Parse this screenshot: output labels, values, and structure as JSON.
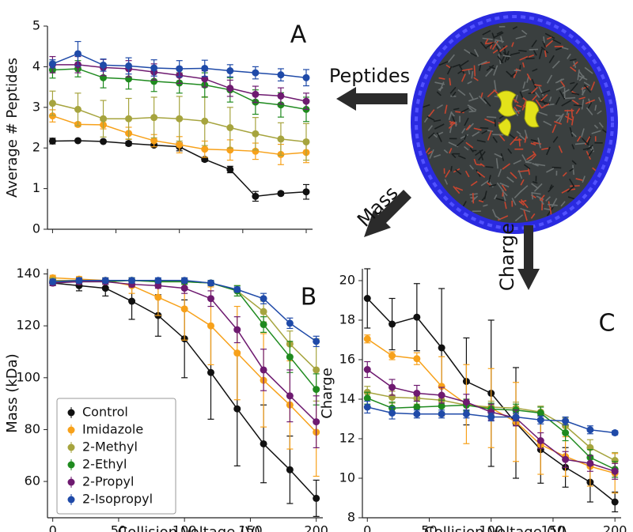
{
  "chart_data": [
    {
      "type": "line",
      "panel": "A",
      "y_label": "Average # Peptides",
      "x": [
        0,
        20,
        40,
        60,
        80,
        100,
        120,
        140,
        160,
        180,
        200
      ],
      "xlim": [
        -4,
        205
      ],
      "xticks": [
        0,
        50,
        100,
        150,
        200
      ],
      "ylim": [
        0,
        5
      ],
      "yticks": [
        0,
        1,
        2,
        3,
        4,
        5
      ],
      "series": [
        {
          "color": "#111111",
          "values": [
            2.17,
            2.18,
            2.16,
            2.11,
            2.07,
            2.03,
            1.72,
            1.47,
            0.81,
            0.88,
            0.92
          ],
          "errors": [
            0.07,
            0.03,
            0.03,
            0.05,
            0.04,
            0.1,
            0.05,
            0.08,
            0.12,
            0.04,
            0.18
          ]
        },
        {
          "color": "#f7a11a",
          "values": [
            2.79,
            2.58,
            2.57,
            2.36,
            2.18,
            2.08,
            1.97,
            1.95,
            1.92,
            1.84,
            1.89
          ],
          "errors": [
            0.15,
            0.05,
            0.1,
            0.15,
            0.15,
            0.2,
            0.2,
            0.25,
            0.2,
            0.25,
            0.25
          ]
        },
        {
          "color": "#a6a43e",
          "values": [
            3.1,
            2.95,
            2.72,
            2.72,
            2.75,
            2.72,
            2.66,
            2.5,
            2.35,
            2.22,
            2.15
          ],
          "errors": [
            0.3,
            0.4,
            0.45,
            0.5,
            0.5,
            0.55,
            0.6,
            0.5,
            0.4,
            0.4,
            0.45
          ]
        },
        {
          "color": "#1e8a1e",
          "values": [
            3.92,
            3.95,
            3.73,
            3.7,
            3.64,
            3.6,
            3.55,
            3.43,
            3.13,
            3.06,
            2.95
          ],
          "errors": [
            0.2,
            0.2,
            0.25,
            0.25,
            0.25,
            0.25,
            0.3,
            0.3,
            0.3,
            0.3,
            0.3
          ]
        },
        {
          "color": "#6e1a70",
          "values": [
            4.05,
            4.05,
            3.98,
            3.95,
            3.87,
            3.79,
            3.7,
            3.47,
            3.32,
            3.28,
            3.15
          ],
          "errors": [
            0.2,
            0.2,
            0.2,
            0.2,
            0.2,
            0.2,
            0.2,
            0.2,
            0.2,
            0.2,
            0.2
          ]
        },
        {
          "color": "#1f4aa8",
          "values": [
            4.07,
            4.32,
            4.04,
            4.02,
            3.97,
            3.95,
            3.96,
            3.9,
            3.85,
            3.8,
            3.73
          ],
          "errors": [
            0.1,
            0.3,
            0.15,
            0.2,
            0.2,
            0.2,
            0.2,
            0.15,
            0.15,
            0.15,
            0.2
          ]
        }
      ]
    },
    {
      "type": "line",
      "panel": "B",
      "y_label": "Mass (kDa)",
      "x_label": "Collision Voltage (V)",
      "x": [
        0,
        20,
        40,
        60,
        80,
        100,
        120,
        140,
        160,
        180,
        200
      ],
      "xlim": [
        -4,
        205
      ],
      "xticks": [
        0,
        50,
        100,
        150,
        200
      ],
      "ylim": [
        46,
        142
      ],
      "yticks": [
        60,
        80,
        100,
        120,
        140
      ],
      "legend": "lower left",
      "series": [
        {
          "name": "Control",
          "color": "#111111",
          "values": [
            136.5,
            135.5,
            134.5,
            129.5,
            124,
            115,
            102,
            88,
            74.5,
            64.5,
            53.5
          ],
          "errors": [
            1,
            2,
            3,
            7,
            8,
            15,
            18,
            22,
            15,
            13,
            7
          ]
        },
        {
          "name": "Imidazole",
          "color": "#f7a11a",
          "values": [
            138.5,
            138,
            137.5,
            135.5,
            131,
            126.5,
            120,
            109.5,
            99,
            89.5,
            79
          ],
          "errors": [
            1,
            1,
            1,
            3,
            7,
            12,
            15,
            18,
            18,
            17,
            17
          ]
        },
        {
          "name": "2-Methyl",
          "color": "#a6a43e",
          "values": [
            137.5,
            137.5,
            137.5,
            137.5,
            137,
            137,
            136.5,
            133.5,
            125.5,
            113,
            103
          ],
          "errors": [
            1,
            1,
            1,
            1,
            1,
            1,
            1,
            2,
            4,
            5,
            12
          ]
        },
        {
          "name": "2-Ethyl",
          "color": "#1e8a1e",
          "values": [
            137,
            137,
            137,
            137.5,
            137,
            137,
            136.5,
            133.5,
            120.5,
            108,
            95.5
          ],
          "errors": [
            1,
            1,
            1,
            1,
            1,
            1,
            1,
            2,
            3,
            6,
            6
          ]
        },
        {
          "name": "2-Propyl",
          "color": "#6e1a70",
          "values": [
            136.5,
            137,
            137,
            136,
            135.5,
            134.5,
            130.5,
            118.5,
            103,
            93,
            83
          ],
          "errors": [
            1,
            1,
            1,
            1,
            1,
            2,
            3,
            5,
            8,
            10,
            10
          ]
        },
        {
          "name": "2-Isopropyl",
          "color": "#1f4aa8",
          "values": [
            137,
            137.5,
            137.5,
            137.5,
            137.5,
            137.5,
            136.5,
            134,
            130.5,
            121,
            114
          ],
          "errors": [
            1,
            1,
            1,
            1,
            1,
            1,
            1,
            1,
            2,
            2,
            2
          ]
        }
      ]
    },
    {
      "type": "line",
      "panel": "C",
      "y_label": "Charge",
      "x_label": "Collision Voltage (V)",
      "x": [
        0,
        20,
        40,
        60,
        80,
        100,
        120,
        140,
        160,
        180,
        200
      ],
      "xlim": [
        -4,
        205
      ],
      "xticks": [
        0,
        50,
        100,
        150,
        200
      ],
      "ylim": [
        8,
        20.6
      ],
      "yticks": [
        8,
        10,
        12,
        14,
        16,
        18,
        20
      ],
      "series": [
        {
          "color": "#111111",
          "values": [
            19.1,
            17.8,
            18.15,
            16.6,
            14.9,
            14.3,
            12.8,
            11.45,
            10.55,
            9.8,
            8.8
          ],
          "errors": [
            1.5,
            1.3,
            1.7,
            3,
            2.2,
            3.7,
            2.8,
            1.7,
            1,
            1,
            0.5
          ]
        },
        {
          "color": "#f7a11a",
          "values": [
            17.05,
            16.2,
            16.05,
            14.65,
            13.75,
            13.55,
            12.85,
            11.7,
            11.1,
            10.6,
            10.25
          ],
          "errors": [
            0.2,
            0.2,
            0.3,
            1.5,
            2,
            2,
            2,
            1.5,
            1,
            1,
            1
          ]
        },
        {
          "color": "#a6a43e",
          "values": [
            14.35,
            14.1,
            14.05,
            13.95,
            13.7,
            13.6,
            13.55,
            13.35,
            12.65,
            11.55,
            10.9
          ],
          "errors": [
            0.3,
            0.3,
            0.3,
            0.3,
            0.3,
            0.3,
            0.3,
            0.3,
            0.4,
            0.4,
            0.4
          ]
        },
        {
          "color": "#1e8a1e",
          "values": [
            14.05,
            13.55,
            13.6,
            13.65,
            13.7,
            13.5,
            13.45,
            13.3,
            12.3,
            11.05,
            10.45
          ],
          "errors": [
            0.3,
            0.3,
            0.3,
            0.3,
            0.3,
            0.3,
            0.3,
            0.3,
            0.4,
            0.4,
            0.4
          ]
        },
        {
          "color": "#6e1a70",
          "values": [
            15.5,
            14.6,
            14.3,
            14.2,
            13.85,
            13.35,
            13.05,
            11.9,
            10.95,
            10.75,
            10.35
          ],
          "errors": [
            0.4,
            0.4,
            0.4,
            0.4,
            0.4,
            0.4,
            0.4,
            0.4,
            0.4,
            0.4,
            0.4
          ]
        },
        {
          "color": "#1f4aa8",
          "values": [
            13.6,
            13.3,
            13.25,
            13.25,
            13.25,
            13.1,
            13.1,
            12.95,
            12.9,
            12.45,
            12.3
          ],
          "errors": [
            0.3,
            0.3,
            0.2,
            0.2,
            0.2,
            0.2,
            0.2,
            0.2,
            0.2,
            0.2,
            0.1
          ]
        }
      ]
    }
  ],
  "annotations": {
    "peptides": "Peptides",
    "mass": "Mass",
    "charge": "Charge"
  }
}
